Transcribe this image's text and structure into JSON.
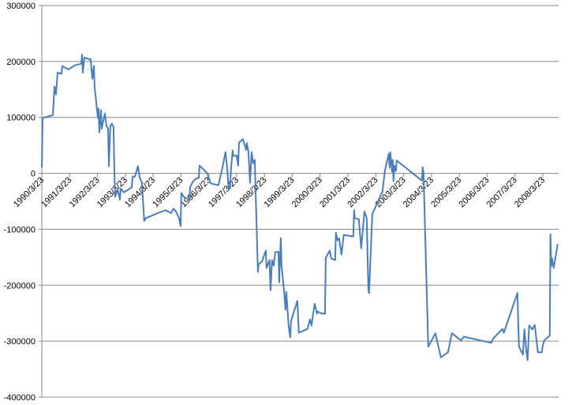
{
  "chart_data": {
    "type": "line",
    "title": "",
    "xlabel": "",
    "ylabel": "",
    "ylim": [
      -400000,
      300000
    ],
    "ytick_step": 100000,
    "yticks": [
      "300000",
      "200000",
      "100000",
      "0",
      "-100000",
      "-200000",
      "-300000",
      "-400000"
    ],
    "xticks": [
      "1990/3/23",
      "1991/3/23",
      "1992/3/23",
      "1993/3/23",
      "1994/3/23",
      "1995/3/23",
      "1996/3/23",
      "1997/3/23",
      "1998/3/23",
      "1999/3/23",
      "2000/3/23",
      "2001/3/23",
      "2002/3/23",
      "2003/3/23",
      "2004/3/23",
      "2005/3/23",
      "2006/3/23",
      "2007/3/23",
      "2008/3/23"
    ],
    "grid": "horizontal",
    "legend": "none",
    "series_color": "#4a7ebb",
    "grid_color": "#868686",
    "series": [
      {
        "x": [
          "1990-03-23",
          "1990-04-03",
          "1990-08-16",
          "1990-09-06",
          "1990-09-26",
          "1990-10-17",
          "1990-12-08",
          "1990-12-18",
          "1991-01-19",
          "1991-03-10",
          "1991-06-01",
          "1991-08-23",
          "1991-09-03",
          "1991-09-13",
          "1991-10-04",
          "1991-12-05",
          "1991-12-25",
          "1992-01-16",
          "1992-02-06",
          "1992-02-16",
          "1992-03-17",
          "1992-03-27",
          "1992-04-07",
          "1992-04-17",
          "1992-05-08",
          "1992-05-18",
          "1992-06-28",
          "1992-07-19",
          "1992-08-10",
          "1992-08-20",
          "1992-09-10",
          "1992-09-28",
          "1992-10-21",
          "1992-11-01",
          "1992-11-11",
          "1992-12-02",
          "1992-12-22",
          "1993-01-13",
          "1993-01-23",
          "1993-03-04",
          "1993-06-16",
          "1993-06-26",
          "1993-07-27",
          "1993-09-07",
          "1993-09-28",
          "1993-10-28",
          "1993-11-28",
          "1993-12-19",
          "1994-05-22",
          "1994-09-04",
          "1994-11-16",
          "1994-12-16",
          "1995-01-17",
          "1995-02-28",
          "1995-03-18",
          "1995-03-28",
          "1995-04-28",
          "1995-06-10",
          "1995-07-10",
          "1995-07-21",
          "1995-09-01",
          "1995-10-02",
          "1995-11-13",
          "1995-11-23",
          "1996-03-05",
          "1996-04-16",
          "1996-07-28",
          "1996-09-19",
          "1996-10-28",
          "1996-11-20",
          "1996-12-10",
          "1996-12-28",
          "1997-01-11",
          "1997-02-01",
          "1997-02-11",
          "1997-03-22",
          "1997-04-13",
          "1997-04-23",
          "1997-06-14",
          "1997-07-25",
          "1997-08-05",
          "1997-08-25",
          "1997-09-16",
          "1997-10-06",
          "1997-10-27",
          "1997-11-17",
          "1997-11-27",
          "1997-12-18",
          "1997-12-28",
          "1998-01-08",
          "1998-02-19",
          "1998-04-10",
          "1998-04-20",
          "1998-05-28",
          "1998-06-11",
          "1998-07-01",
          "1998-07-22",
          "1998-08-12",
          "1998-09-23",
          "1998-10-03",
          "1998-10-24",
          "1998-11-04",
          "1998-12-04",
          "1998-12-25",
          "1999-01-05",
          "1999-02-05",
          "1999-02-26",
          "1999-03-06",
          "1999-05-28",
          "1999-06-18",
          "1999-10-10",
          "1999-11-11",
          "1999-12-01",
          "2000-01-12",
          "2000-02-13",
          "2000-02-23",
          "2000-04-04",
          "2000-05-25",
          "2000-06-05",
          "2000-07-26",
          "2000-08-16",
          "2000-10-07",
          "2000-10-17",
          "2000-11-08",
          "2000-11-28",
          "2000-12-28",
          "2001-01-28",
          "2001-06-02",
          "2001-06-12",
          "2001-06-22",
          "2001-08-13",
          "2001-09-14",
          "2001-10-25",
          "2001-11-25",
          "2001-12-16",
          "2001-12-26",
          "2002-02-07",
          "2002-06-19",
          "2002-07-20",
          "2002-08-21",
          "2002-09-11",
          "2002-09-21",
          "2002-10-01",
          "2002-10-22",
          "2002-11-02",
          "2002-11-12",
          "2002-11-22",
          "2002-12-13",
          "2002-12-23",
          "2003-11-19",
          "2003-11-28",
          "2003-12-10",
          "2004-02-11",
          "2004-05-13",
          "2004-07-24",
          "2004-10-26",
          "2004-12-17",
          "2005-04-19",
          "2005-05-20",
          "2006-05-17",
          "2006-06-07",
          "2006-10-10",
          "2006-10-28",
          "2007-04-24",
          "2007-05-14",
          "2007-07-05",
          "2007-07-25",
          "2007-08-16",
          "2007-09-06",
          "2007-09-26",
          "2007-11-07",
          "2007-12-08",
          "2008-01-19",
          "2008-03-10",
          "2008-03-20",
          "2008-04-10",
          "2008-06-22",
          "2008-07-02",
          "2008-07-12",
          "2008-07-22",
          "2008-08-13",
          "2008-09-13",
          "2008-10-04"
        ],
        "values": [
          11000,
          99000,
          104000,
          155000,
          141000,
          180000,
          178000,
          192000,
          189000,
          186000,
          193000,
          196000,
          212000,
          180000,
          207000,
          204000,
          204000,
          169000,
          192000,
          155000,
          113000,
          99000,
          116000,
          73000,
          113000,
          80000,
          107000,
          85000,
          80000,
          13000,
          85000,
          89000,
          83000,
          7000,
          -42000,
          -34000,
          -32000,
          -47000,
          -27000,
          -34000,
          -25000,
          -6000,
          -6000,
          13000,
          -7000,
          -17000,
          -85000,
          -80000,
          -71000,
          -66000,
          -71000,
          -63000,
          -68000,
          -80000,
          -94000,
          -35000,
          -42000,
          -45000,
          -49000,
          -24000,
          -14000,
          -10000,
          -8000,
          14000,
          0,
          -18000,
          -21000,
          10000,
          38000,
          10000,
          -28000,
          -25000,
          10000,
          41000,
          31000,
          32000,
          14000,
          55000,
          61000,
          42000,
          54000,
          38000,
          -17000,
          38000,
          18000,
          24000,
          -28000,
          -127000,
          -176000,
          -162000,
          -158000,
          -138000,
          -169000,
          -155000,
          -209000,
          -155000,
          -165000,
          -141000,
          -140000,
          -195000,
          -116000,
          -165000,
          -207000,
          -244000,
          -212000,
          -272000,
          -293000,
          -264000,
          -228000,
          -285000,
          -278000,
          -261000,
          -272000,
          -233000,
          -251000,
          -247000,
          -250000,
          -251000,
          -151000,
          -138000,
          -152000,
          -155000,
          -106000,
          -120000,
          -116000,
          -145000,
          -110000,
          -113000,
          -66000,
          -80000,
          -82000,
          -134000,
          -68000,
          -80000,
          -207000,
          -214000,
          -73000,
          -32000,
          4000,
          24000,
          35000,
          10000,
          38000,
          3000,
          24000,
          -14000,
          14000,
          4000,
          23000,
          -13000,
          11000,
          1000,
          -310000,
          -286000,
          -329000,
          -320000,
          -286000,
          -299000,
          -292000,
          -303000,
          -296000,
          -278000,
          -285000,
          -214000,
          -310000,
          -324000,
          -279000,
          -314000,
          -334000,
          -272000,
          -279000,
          -271000,
          -320000,
          -320000,
          -310000,
          -299000,
          -290000,
          -109000,
          -166000,
          -152000,
          -169000,
          -145000,
          -127000
        ]
      }
    ]
  }
}
